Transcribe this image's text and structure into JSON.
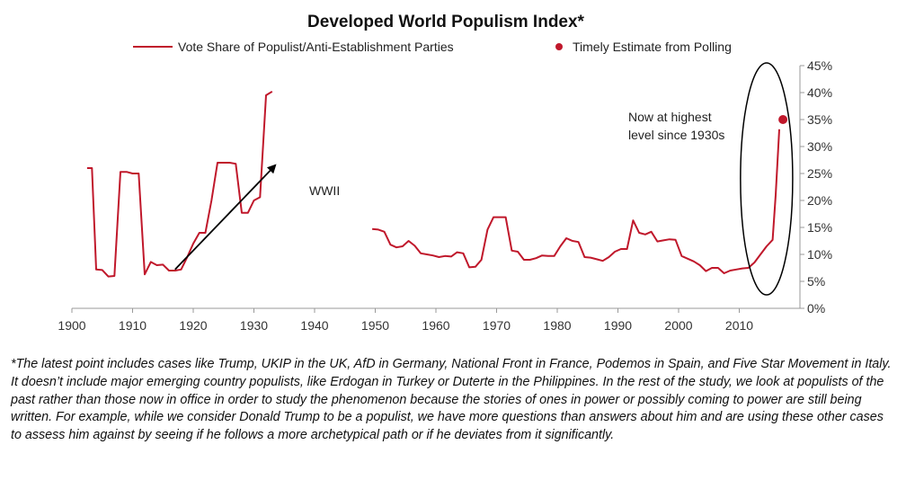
{
  "chart_data": {
    "type": "line",
    "title": "Developed World Populism Index*",
    "xlabel": "",
    "ylabel": "",
    "xlim": [
      1900,
      2020
    ],
    "ylim": [
      0,
      45
    ],
    "x_ticks": [
      "1900",
      "1910",
      "1920",
      "1930",
      "1940",
      "1950",
      "1960",
      "1970",
      "1980",
      "1990",
      "2000",
      "2010"
    ],
    "y_ticks": [
      "0%",
      "5%",
      "10%",
      "15%",
      "20%",
      "25%",
      "30%",
      "35%",
      "40%",
      "45%"
    ],
    "legend_position": "top",
    "series": [
      {
        "name": "Vote Share of Populist/Anti-Establishment Parties",
        "color": "#c0182b",
        "segments": [
          [
            [
              1902.5,
              26.0
            ],
            [
              1903.3,
              26.0
            ],
            [
              1904.0,
              7.2
            ],
            [
              1905.0,
              7.1
            ],
            [
              1906.0,
              5.9
            ],
            [
              1907.0,
              6.0
            ],
            [
              1908.0,
              25.3
            ],
            [
              1909.0,
              25.3
            ],
            [
              1910.0,
              25.0
            ],
            [
              1911.0,
              25.0
            ],
            [
              1912.0,
              6.3
            ],
            [
              1913.0,
              8.6
            ],
            [
              1914.0,
              8.0
            ],
            [
              1915.0,
              8.1
            ],
            [
              1916.0,
              7.0
            ],
            [
              1917.0,
              7.0
            ],
            [
              1918.0,
              7.2
            ],
            [
              1919.0,
              9.5
            ],
            [
              1920.0,
              12.0
            ],
            [
              1921.0,
              14.0
            ],
            [
              1922.0,
              14.0
            ],
            [
              1923.0,
              20.0
            ],
            [
              1924.0,
              27.0
            ],
            [
              1925.0,
              27.0
            ],
            [
              1926.0,
              27.0
            ],
            [
              1927.0,
              26.8
            ],
            [
              1928.0,
              17.7
            ],
            [
              1929.0,
              17.7
            ],
            [
              1930.0,
              20.0
            ],
            [
              1931.0,
              20.6
            ],
            [
              1932.0,
              39.5
            ],
            [
              1933.0,
              40.2
            ]
          ],
          [
            [
              1949.5,
              14.7
            ],
            [
              1950.5,
              14.6
            ],
            [
              1951.5,
              14.2
            ],
            [
              1952.5,
              11.8
            ],
            [
              1953.5,
              11.3
            ],
            [
              1954.5,
              11.5
            ],
            [
              1955.5,
              12.5
            ],
            [
              1956.5,
              11.6
            ],
            [
              1957.5,
              10.2
            ],
            [
              1958.5,
              10.0
            ],
            [
              1959.5,
              9.8
            ],
            [
              1960.5,
              9.5
            ],
            [
              1961.5,
              9.7
            ],
            [
              1962.5,
              9.6
            ],
            [
              1963.5,
              10.4
            ],
            [
              1964.5,
              10.2
            ],
            [
              1965.5,
              7.6
            ],
            [
              1966.5,
              7.7
            ],
            [
              1967.5,
              9.0
            ],
            [
              1968.5,
              14.6
            ],
            [
              1969.5,
              16.9
            ],
            [
              1970.5,
              16.9
            ],
            [
              1971.5,
              16.9
            ],
            [
              1972.5,
              10.7
            ],
            [
              1973.5,
              10.5
            ],
            [
              1974.5,
              9.0
            ],
            [
              1975.5,
              9.0
            ],
            [
              1976.5,
              9.3
            ],
            [
              1977.5,
              9.8
            ],
            [
              1978.5,
              9.7
            ],
            [
              1979.5,
              9.7
            ],
            [
              1980.5,
              11.5
            ],
            [
              1981.5,
              13.0
            ],
            [
              1982.5,
              12.5
            ],
            [
              1983.5,
              12.3
            ],
            [
              1984.5,
              9.5
            ],
            [
              1985.5,
              9.4
            ],
            [
              1986.5,
              9.1
            ],
            [
              1987.5,
              8.8
            ],
            [
              1988.5,
              9.5
            ],
            [
              1989.5,
              10.5
            ],
            [
              1990.5,
              11.0
            ],
            [
              1991.5,
              11.0
            ],
            [
              1992.5,
              16.3
            ],
            [
              1993.5,
              14.0
            ],
            [
              1994.5,
              13.7
            ],
            [
              1995.5,
              14.2
            ],
            [
              1996.5,
              12.4
            ],
            [
              1997.5,
              12.6
            ],
            [
              1998.5,
              12.8
            ],
            [
              1999.5,
              12.7
            ],
            [
              2000.5,
              9.7
            ],
            [
              2001.5,
              9.2
            ],
            [
              2002.5,
              8.7
            ],
            [
              2003.5,
              8.0
            ],
            [
              2004.5,
              6.9
            ],
            [
              2005.5,
              7.5
            ],
            [
              2006.5,
              7.5
            ],
            [
              2007.5,
              6.5
            ],
            [
              2008.5,
              7.0
            ],
            [
              2009.5,
              7.2
            ],
            [
              2010.5,
              7.4
            ],
            [
              2011.5,
              7.5
            ],
            [
              2012.5,
              8.5
            ],
            [
              2013.5,
              10.0
            ],
            [
              2014.5,
              11.5
            ],
            [
              2015.5,
              12.7
            ],
            [
              2016.0,
              21.0
            ],
            [
              2016.6,
              33.2
            ]
          ]
        ]
      },
      {
        "name": "Timely Estimate from Polling",
        "type": "scatter",
        "color": "#c0182b",
        "points": [
          [
            2017.2,
            35.0
          ]
        ]
      }
    ],
    "annotations": {
      "wwii": "WWII",
      "highest_line1": "Now at highest",
      "highest_line2": "level since 1930s"
    },
    "arrow": {
      "from": [
        1917.0,
        7.2
      ],
      "to": [
        1933.5,
        26.5
      ]
    },
    "ellipse": {
      "cx": 2014.5,
      "cy": 24.0,
      "rx": 4.3,
      "ry": 21.5
    }
  },
  "footnote": "*The latest point includes cases like Trump, UKIP in the UK, AfD in Germany, National Front in France, Podemos in Spain, and Five Star Movement in Italy. It doesn’t include major emerging country populists, like Erdogan in Turkey or Duterte in the Philippines. In the rest of the study, we look at populists of the past rather than those now in office in order to study the phenomenon because the stories of ones in power or possibly coming to power are still being written.  For example, while we consider Donald Trump to be a populist, we have more questions than answers about him and are using these other cases to assess him against by seeing if he follows a more archetypical path or if he deviates from it significantly."
}
